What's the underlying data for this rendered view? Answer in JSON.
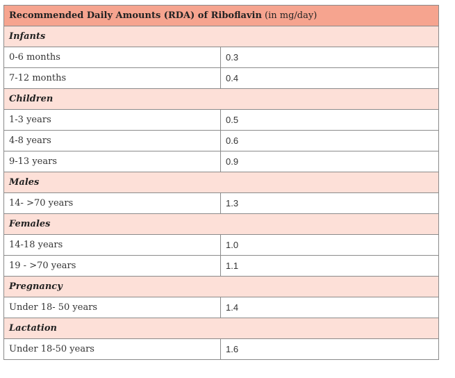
{
  "table": {
    "title_bold": "Recommended Daily Amounts (RDA) of Riboflavin",
    "title_unit": "(in mg/day)",
    "groups": [
      {
        "name": "Infants",
        "rows": [
          {
            "label": "0-6 months",
            "value": "0.3"
          },
          {
            "label": "7-12 months",
            "value": "0.4"
          }
        ]
      },
      {
        "name": "Children",
        "rows": [
          {
            "label": "1-3 years",
            "value": "0.5"
          },
          {
            "label": "4-8 years",
            "value": "0.6"
          },
          {
            "label": "9-13 years",
            "value": "0.9"
          }
        ]
      },
      {
        "name": "Males",
        "rows": [
          {
            "label": "14- >70 years",
            "value": "1.3"
          }
        ]
      },
      {
        "name": "Females",
        "rows": [
          {
            "label": "14-18 years",
            "value": "1.0"
          },
          {
            "label": "19 - >70 years",
            "value": "1.1"
          }
        ]
      },
      {
        "name": "Pregnancy",
        "rows": [
          {
            "label": "Under 18- 50 years",
            "value": "1.4"
          }
        ]
      },
      {
        "name": "Lactation",
        "rows": [
          {
            "label": "Under 18-50 years",
            "value": "1.6"
          }
        ]
      }
    ],
    "colors": {
      "title_background": "#f6a48f",
      "group_background": "#fde0d8",
      "border": "#8a8a8a"
    }
  }
}
